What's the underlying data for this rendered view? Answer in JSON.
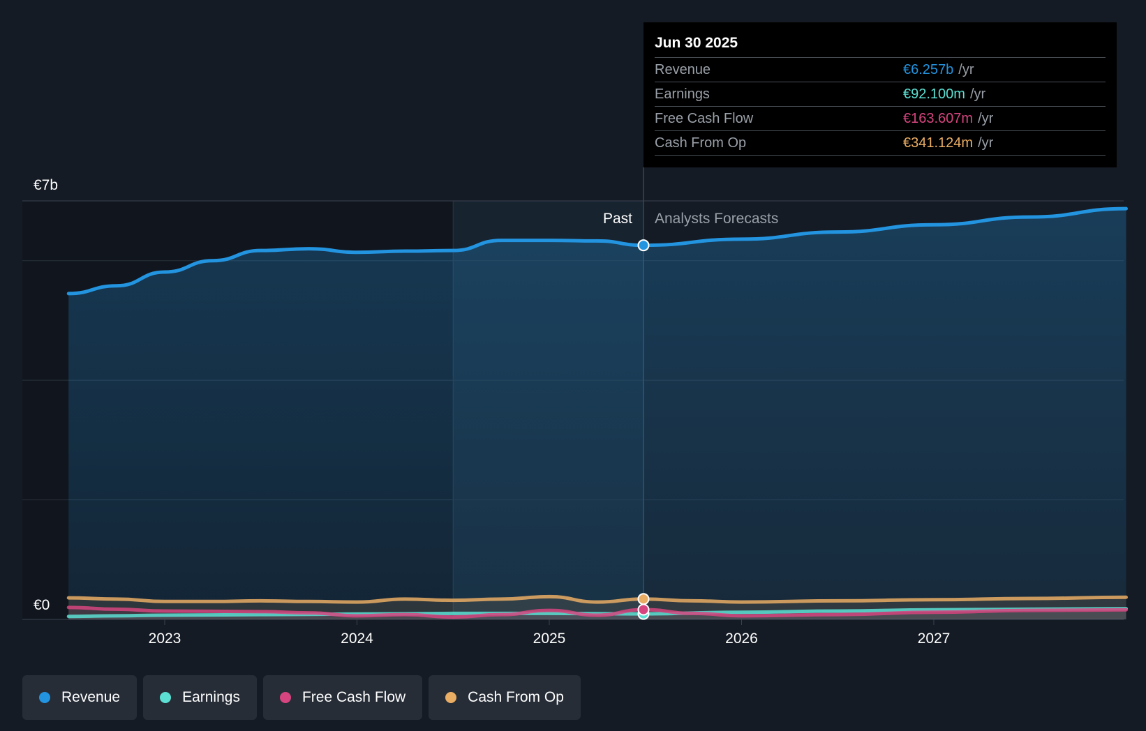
{
  "chart_data": {
    "type": "area",
    "y_ticks": [
      {
        "value": 7,
        "label": "€7b"
      },
      {
        "value": 0,
        "label": "€0"
      }
    ],
    "ylim": [
      0,
      7
    ],
    "x_ticks": [
      "2023",
      "2024",
      "2025",
      "2026",
      "2027"
    ],
    "past_label": "Past",
    "forecast_label": "Analysts Forecasts",
    "divider_date": "2025.49",
    "series": [
      {
        "name": "Revenue",
        "color": "#2394e0",
        "values": [
          [
            2022.5,
            5.45
          ],
          [
            2022.75,
            5.58
          ],
          [
            2023.0,
            5.81
          ],
          [
            2023.25,
            6.0
          ],
          [
            2023.5,
            6.17
          ],
          [
            2023.75,
            6.2
          ],
          [
            2024.0,
            6.14
          ],
          [
            2024.25,
            6.16
          ],
          [
            2024.5,
            6.17
          ],
          [
            2024.75,
            6.34
          ],
          [
            2025.0,
            6.34
          ],
          [
            2025.25,
            6.33
          ],
          [
            2025.49,
            6.257
          ],
          [
            2026.0,
            6.36
          ],
          [
            2026.5,
            6.48
          ],
          [
            2027.0,
            6.6
          ],
          [
            2027.5,
            6.73
          ],
          [
            2028.0,
            6.87
          ]
        ]
      },
      {
        "name": "Earnings",
        "color": "#5ce0d3",
        "values": [
          [
            2022.5,
            0.05
          ],
          [
            2022.75,
            0.06
          ],
          [
            2023.0,
            0.07
          ],
          [
            2023.5,
            0.08
          ],
          [
            2024.0,
            0.09
          ],
          [
            2024.5,
            0.1
          ],
          [
            2025.0,
            0.1
          ],
          [
            2025.49,
            0.0921
          ],
          [
            2026.0,
            0.12
          ],
          [
            2026.5,
            0.14
          ],
          [
            2027.0,
            0.16
          ],
          [
            2027.5,
            0.17
          ],
          [
            2028.0,
            0.18
          ]
        ]
      },
      {
        "name": "Free Cash Flow",
        "color": "#d6457f",
        "values": [
          [
            2022.5,
            0.2
          ],
          [
            2022.75,
            0.17
          ],
          [
            2023.0,
            0.14
          ],
          [
            2023.5,
            0.13
          ],
          [
            2023.75,
            0.11
          ],
          [
            2024.0,
            0.06
          ],
          [
            2024.25,
            0.08
          ],
          [
            2024.5,
            0.04
          ],
          [
            2024.75,
            0.08
          ],
          [
            2025.0,
            0.15
          ],
          [
            2025.25,
            0.07
          ],
          [
            2025.49,
            0.1636
          ],
          [
            2025.75,
            0.1
          ],
          [
            2026.0,
            0.06
          ],
          [
            2026.5,
            0.08
          ],
          [
            2027.0,
            0.12
          ],
          [
            2027.5,
            0.15
          ],
          [
            2028.0,
            0.16
          ]
        ]
      },
      {
        "name": "Cash From Op",
        "color": "#eaad64",
        "values": [
          [
            2022.5,
            0.36
          ],
          [
            2022.75,
            0.34
          ],
          [
            2023.0,
            0.3
          ],
          [
            2023.25,
            0.3
          ],
          [
            2023.5,
            0.31
          ],
          [
            2023.75,
            0.3
          ],
          [
            2024.0,
            0.29
          ],
          [
            2024.25,
            0.34
          ],
          [
            2024.5,
            0.32
          ],
          [
            2024.75,
            0.34
          ],
          [
            2025.0,
            0.38
          ],
          [
            2025.25,
            0.29
          ],
          [
            2025.49,
            0.3411
          ],
          [
            2025.75,
            0.31
          ],
          [
            2026.0,
            0.29
          ],
          [
            2026.5,
            0.31
          ],
          [
            2027.0,
            0.33
          ],
          [
            2027.5,
            0.35
          ],
          [
            2028.0,
            0.37
          ]
        ]
      }
    ]
  },
  "tooltip": {
    "date": "Jun 30 2025",
    "rows": [
      {
        "label": "Revenue",
        "value": "€6.257b",
        "unit": "/yr",
        "color": "#2394e0"
      },
      {
        "label": "Earnings",
        "value": "€92.100m",
        "unit": "/yr",
        "color": "#5ce0d3"
      },
      {
        "label": "Free Cash Flow",
        "value": "€163.607m",
        "unit": "/yr",
        "color": "#d6457f"
      },
      {
        "label": "Cash From Op",
        "value": "€341.124m",
        "unit": "/yr",
        "color": "#eaad64"
      }
    ]
  },
  "legend": [
    {
      "label": "Revenue",
      "color": "#2394e0"
    },
    {
      "label": "Earnings",
      "color": "#5ce0d3"
    },
    {
      "label": "Free Cash Flow",
      "color": "#d6457f"
    },
    {
      "label": "Cash From Op",
      "color": "#eaad64"
    }
  ]
}
